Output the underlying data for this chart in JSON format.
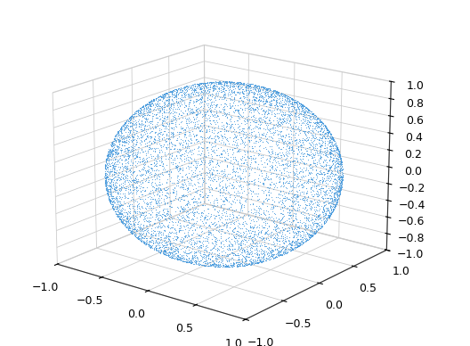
{
  "n_points": 10000,
  "seed": 42,
  "point_color": "#4499dd",
  "point_size": 2.5,
  "marker": ".",
  "alpha": 0.9,
  "xlim": [
    -1,
    1
  ],
  "ylim": [
    -1,
    1
  ],
  "zlim": [
    -1,
    1
  ],
  "xticks": [
    -1,
    -0.5,
    0,
    0.5,
    1
  ],
  "yticks": [
    -1,
    -0.5,
    0,
    0.5,
    1
  ],
  "zticks": [
    -1,
    -0.8,
    -0.6,
    -0.4,
    -0.2,
    0,
    0.2,
    0.4,
    0.6,
    0.8,
    1
  ],
  "elev": 18,
  "azim": -52,
  "grid_color": "#cccccc",
  "background_color": "#ffffff",
  "pane_color": [
    1.0,
    1.0,
    1.0,
    1.0
  ],
  "tick_fontsize": 9,
  "figwidth": 5.28,
  "figheight": 3.88,
  "dpi": 100
}
